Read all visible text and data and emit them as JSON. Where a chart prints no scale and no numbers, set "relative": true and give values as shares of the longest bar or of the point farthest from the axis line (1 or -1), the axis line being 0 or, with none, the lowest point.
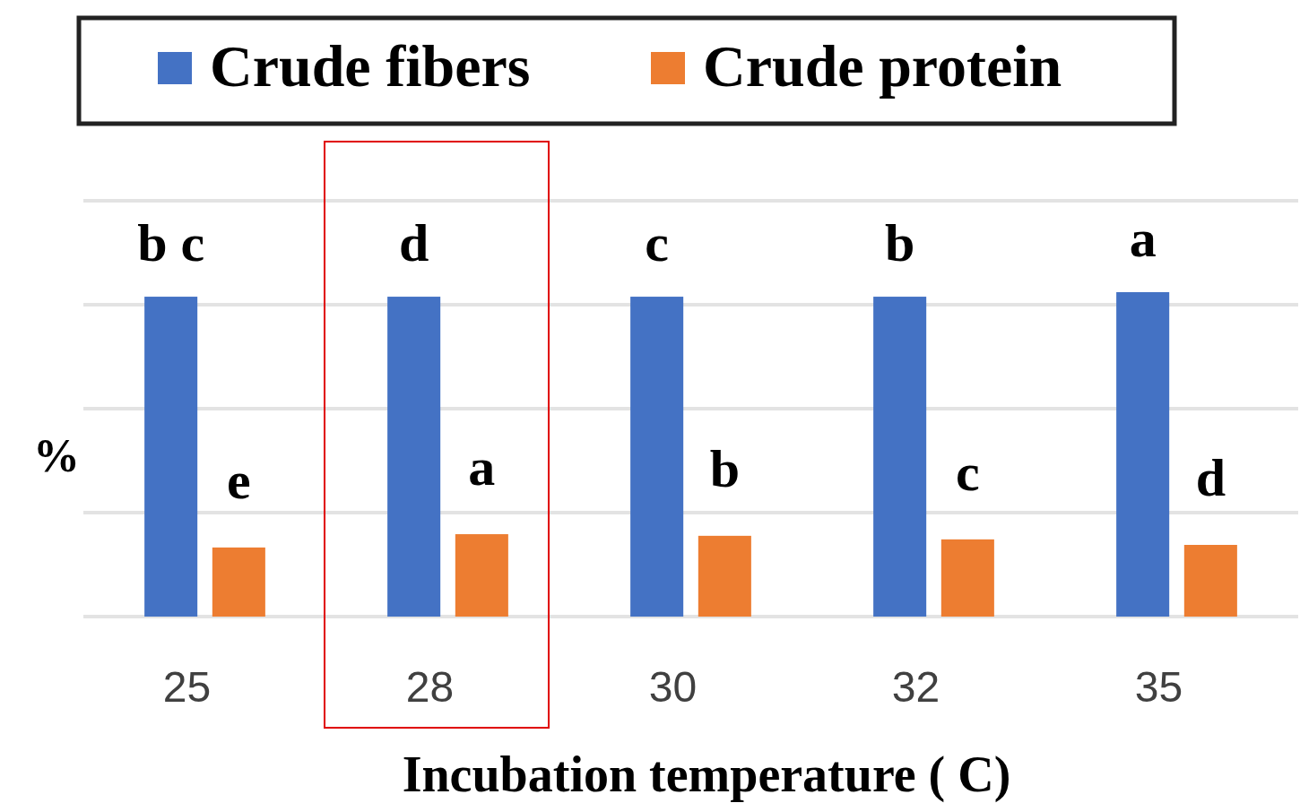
{
  "chart_data": {
    "type": "bar",
    "relative": true,
    "categories": [
      "25",
      "28",
      "30",
      "32",
      "35"
    ],
    "series": [
      {
        "name": "Crude fibers",
        "color": "#4472c4",
        "values": [
          0.986,
          0.986,
          0.986,
          0.986,
          1
        ]
      },
      {
        "name": "Crude protein",
        "color": "#ed7d31",
        "values": [
          0.213,
          0.254,
          0.249,
          0.238,
          0.221
        ]
      }
    ],
    "xlabel": "Incubation temperature ( C)",
    "ylabel": "%",
    "legend": "top",
    "grid": "y",
    "annotations": [
      {
        "text": "b c",
        "x": "25",
        "y": 0.986
      },
      {
        "text": "d",
        "x": "28",
        "y": 0.986
      },
      {
        "text": "c",
        "x": "30",
        "y": 0.986
      },
      {
        "text": "b",
        "x": "32",
        "y": 0.986
      },
      {
        "text": "a",
        "x": "35",
        "y": 1
      },
      "e",
      "a",
      "b",
      "c",
      "d"
    ]
  }
}
